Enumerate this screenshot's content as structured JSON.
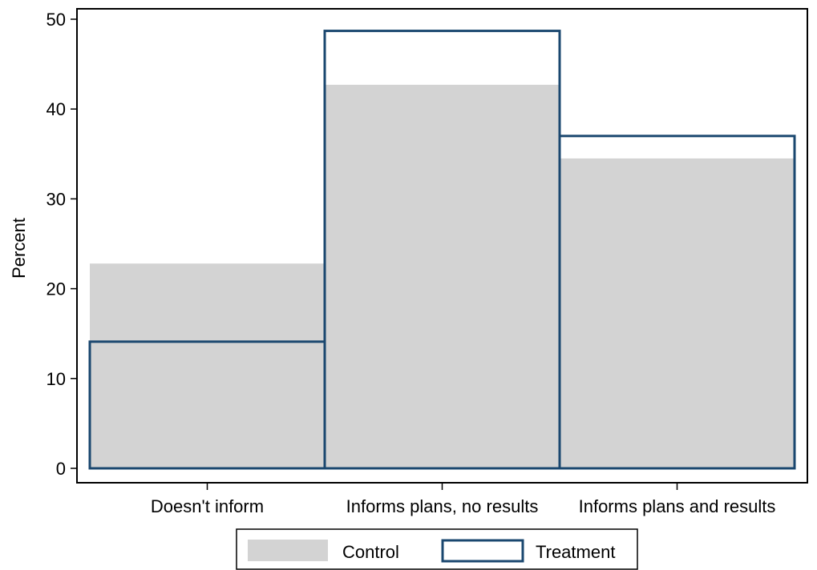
{
  "chart_data": {
    "type": "bar",
    "categories": [
      "Doesn't inform",
      "Informs plans, no results",
      "Informs plans and results"
    ],
    "series": [
      {
        "name": "Control",
        "values": [
          22.8,
          42.7,
          34.5
        ],
        "style": "filled",
        "color": "#d3d3d3"
      },
      {
        "name": "Treatment",
        "values": [
          14.1,
          48.7,
          37.0
        ],
        "style": "outline",
        "color": "#1a476f"
      }
    ],
    "title": "",
    "xlabel": "",
    "ylabel": "Percent",
    "ylim": [
      0,
      50
    ],
    "yticks": [
      0,
      10,
      20,
      30,
      40,
      50
    ],
    "grid": false,
    "legend_position": "bottom"
  }
}
